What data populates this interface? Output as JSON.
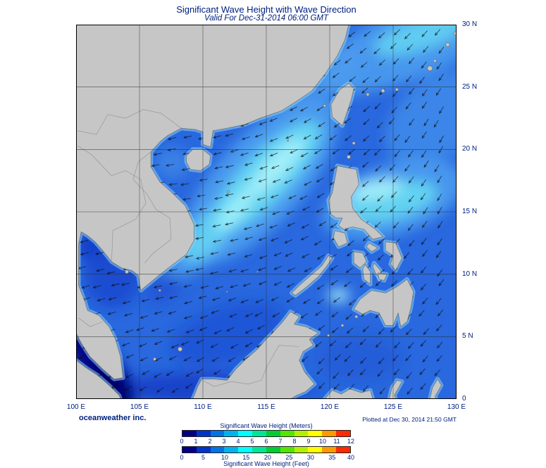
{
  "title": "Significant Wave Height with Wave Direction",
  "subtitle": "Valid For Dec-31-2014 06:00 GMT",
  "footer": {
    "credit": "oceanweather inc.",
    "plotted_at": "Plotted at Dec 30, 2014 21:50 GMT"
  },
  "axes": {
    "lat_labels": [
      "30 N",
      "25 N",
      "20 N",
      "15 N",
      "10 N",
      "5 N",
      "0"
    ],
    "lon_labels": [
      "100 E",
      "105 E",
      "110 E",
      "115 E",
      "120 E",
      "125 E",
      "130 E"
    ]
  },
  "legend": {
    "meters_title": "Significant Wave Height (Meters)",
    "feet_title": "Significant Wave Height (Feet)",
    "meters_ticks": [
      "0",
      "1",
      "2",
      "3",
      "4",
      "5",
      "6",
      "7",
      "8",
      "9",
      "10",
      "11",
      "12"
    ],
    "feet_ticks": [
      "0",
      "5",
      "10",
      "15",
      "20",
      "25",
      "30",
      "35",
      "40"
    ],
    "colors": [
      "#000080",
      "#0033cc",
      "#0073e6",
      "#00b3f0",
      "#00ffff",
      "#00e696",
      "#00cc33",
      "#55e600",
      "#b3f000",
      "#ffff00",
      "#ff9900",
      "#ff2a00"
    ]
  },
  "map": {
    "palette": {
      "text_navy": "#002080",
      "land": "#c6c6c6",
      "sea_base": "#2968de",
      "sea_light": "#4d9ff0",
      "sea_cyan": "#66d9f2",
      "sea_bright": "#aaf2fa",
      "sea_dark": "#1a49cf",
      "sea_deep": "#0e35c2",
      "sea_navy": "#000082"
    }
  },
  "chart_data": {
    "type": "heatmap",
    "title": "Significant Wave Height with Wave Direction",
    "valid_time": "Dec-31-2014 06:00 GMT",
    "plotted_time": "Dec 30, 2014 21:50 GMT",
    "lon_ticks_deg_e": [
      100,
      105,
      110,
      115,
      120,
      125,
      130
    ],
    "lat_ticks_deg_n": [
      0,
      5,
      10,
      15,
      20,
      25,
      30
    ],
    "colorbar_meters": [
      0,
      1,
      2,
      3,
      4,
      5,
      6,
      7,
      8,
      9,
      10,
      11,
      12
    ],
    "colorbar_feet": [
      0,
      5,
      10,
      15,
      20,
      25,
      30,
      35,
      40
    ]
  }
}
